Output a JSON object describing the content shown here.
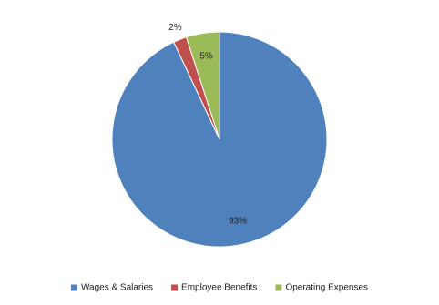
{
  "chart_data": {
    "type": "pie",
    "categories": [
      "Wages & Salaries",
      "Employee Benefits",
      "Operating Expenses"
    ],
    "values": [
      93,
      2,
      5
    ],
    "value_labels": [
      "93%",
      "2%",
      "5%"
    ],
    "colors": [
      "#4f81bd",
      "#c0504d",
      "#9bbb59"
    ],
    "legend": "bottom"
  }
}
